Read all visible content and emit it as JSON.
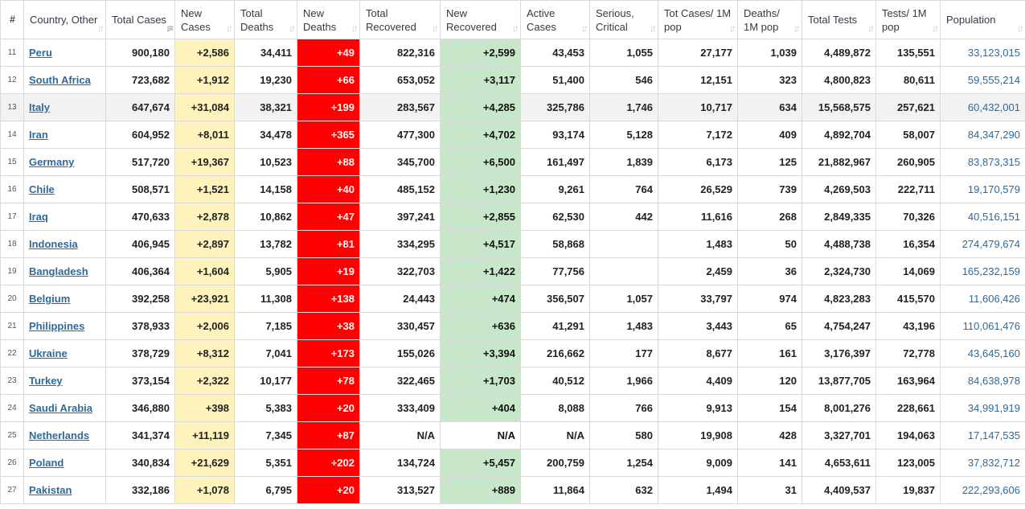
{
  "colors": {
    "new_cases_bg": "#fff3bd",
    "new_deaths_bg": "#ff0000",
    "new_recovered_bg": "#c8e6c9",
    "link": "#2c6aa0"
  },
  "headers": [
    {
      "key": "num",
      "label": "#"
    },
    {
      "key": "country",
      "label": "Country, Other"
    },
    {
      "key": "total_cases",
      "label": "Total Cases"
    },
    {
      "key": "new_cases",
      "label": "New Cases"
    },
    {
      "key": "total_deaths",
      "label": "Total Deaths"
    },
    {
      "key": "new_deaths",
      "label": "New Deaths"
    },
    {
      "key": "total_recovered",
      "label": "Total Recovered"
    },
    {
      "key": "new_recovered",
      "label": "New Recovered"
    },
    {
      "key": "active_cases",
      "label": "Active Cases"
    },
    {
      "key": "serious_critical",
      "label": "Serious, Critical"
    },
    {
      "key": "tot_cases_1m",
      "label": "Tot Cases/ 1M pop"
    },
    {
      "key": "deaths_1m",
      "label": "Deaths/ 1M pop"
    },
    {
      "key": "total_tests",
      "label": "Total Tests"
    },
    {
      "key": "tests_1m",
      "label": "Tests/ 1M pop"
    },
    {
      "key": "population",
      "label": "Population"
    }
  ],
  "sort_icon": "sort-arrows-icon",
  "active_sort_column": "total_cases",
  "rows": [
    [
      "11",
      "Peru",
      "900,180",
      "+2,586",
      "34,411",
      "+49",
      "822,316",
      "+2,599",
      "43,453",
      "1,055",
      "27,177",
      "1,039",
      "4,489,872",
      "135,551",
      "33,123,015"
    ],
    [
      "12",
      "South Africa",
      "723,682",
      "+1,912",
      "19,230",
      "+66",
      "653,052",
      "+3,117",
      "51,400",
      "546",
      "12,151",
      "323",
      "4,800,823",
      "80,611",
      "59,555,214"
    ],
    [
      "13",
      "Italy",
      "647,674",
      "+31,084",
      "38,321",
      "+199",
      "283,567",
      "+4,285",
      "325,786",
      "1,746",
      "10,717",
      "634",
      "15,568,575",
      "257,621",
      "60,432,001"
    ],
    [
      "14",
      "Iran",
      "604,952",
      "+8,011",
      "34,478",
      "+365",
      "477,300",
      "+4,702",
      "93,174",
      "5,128",
      "7,172",
      "409",
      "4,892,704",
      "58,007",
      "84,347,290"
    ],
    [
      "15",
      "Germany",
      "517,720",
      "+19,367",
      "10,523",
      "+88",
      "345,700",
      "+6,500",
      "161,497",
      "1,839",
      "6,173",
      "125",
      "21,882,967",
      "260,905",
      "83,873,315"
    ],
    [
      "16",
      "Chile",
      "508,571",
      "+1,521",
      "14,158",
      "+40",
      "485,152",
      "+1,230",
      "9,261",
      "764",
      "26,529",
      "739",
      "4,269,503",
      "222,711",
      "19,170,579"
    ],
    [
      "17",
      "Iraq",
      "470,633",
      "+2,878",
      "10,862",
      "+47",
      "397,241",
      "+2,855",
      "62,530",
      "442",
      "11,616",
      "268",
      "2,849,335",
      "70,326",
      "40,516,151"
    ],
    [
      "18",
      "Indonesia",
      "406,945",
      "+2,897",
      "13,782",
      "+81",
      "334,295",
      "+4,517",
      "58,868",
      "",
      "1,483",
      "50",
      "4,488,738",
      "16,354",
      "274,479,674"
    ],
    [
      "19",
      "Bangladesh",
      "406,364",
      "+1,604",
      "5,905",
      "+19",
      "322,703",
      "+1,422",
      "77,756",
      "",
      "2,459",
      "36",
      "2,324,730",
      "14,069",
      "165,232,159"
    ],
    [
      "20",
      "Belgium",
      "392,258",
      "+23,921",
      "11,308",
      "+138",
      "24,443",
      "+474",
      "356,507",
      "1,057",
      "33,797",
      "974",
      "4,823,283",
      "415,570",
      "11,606,426"
    ],
    [
      "21",
      "Philippines",
      "378,933",
      "+2,006",
      "7,185",
      "+38",
      "330,457",
      "+636",
      "41,291",
      "1,483",
      "3,443",
      "65",
      "4,754,247",
      "43,196",
      "110,061,476"
    ],
    [
      "22",
      "Ukraine",
      "378,729",
      "+8,312",
      "7,041",
      "+173",
      "155,026",
      "+3,394",
      "216,662",
      "177",
      "8,677",
      "161",
      "3,176,397",
      "72,778",
      "43,645,160"
    ],
    [
      "23",
      "Turkey",
      "373,154",
      "+2,322",
      "10,177",
      "+78",
      "322,465",
      "+1,703",
      "40,512",
      "1,966",
      "4,409",
      "120",
      "13,877,705",
      "163,964",
      "84,638,978"
    ],
    [
      "24",
      "Saudi Arabia",
      "346,880",
      "+398",
      "5,383",
      "+20",
      "333,409",
      "+404",
      "8,088",
      "766",
      "9,913",
      "154",
      "8,001,276",
      "228,661",
      "34,991,919"
    ],
    [
      "25",
      "Netherlands",
      "341,374",
      "+11,119",
      "7,345",
      "+87",
      "N/A",
      "N/A",
      "N/A",
      "580",
      "19,908",
      "428",
      "3,327,701",
      "194,063",
      "17,147,535"
    ],
    [
      "26",
      "Poland",
      "340,834",
      "+21,629",
      "5,351",
      "+202",
      "134,724",
      "+5,457",
      "200,759",
      "1,254",
      "9,009",
      "141",
      "4,653,611",
      "123,005",
      "37,832,712"
    ],
    [
      "27",
      "Pakistan",
      "332,186",
      "+1,078",
      "6,795",
      "+20",
      "313,527",
      "+889",
      "11,864",
      "632",
      "1,494",
      "31",
      "4,409,537",
      "19,837",
      "222,293,606"
    ]
  ],
  "striped_row": "13"
}
